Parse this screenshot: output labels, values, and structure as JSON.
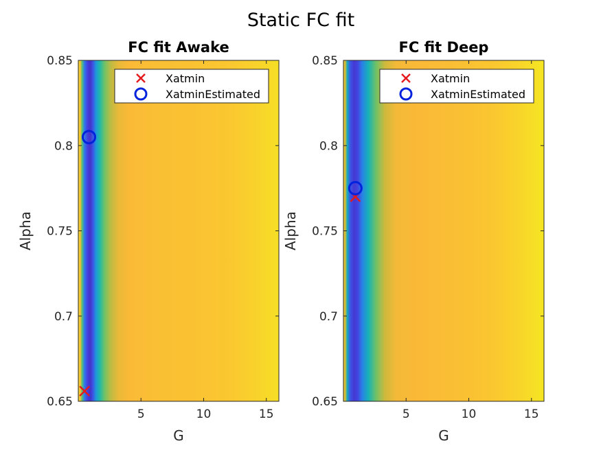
{
  "figure": {
    "suptitle": "Static FC fit"
  },
  "colors": {
    "bg": "#ffffff",
    "axis": "#262626",
    "xatmin_marker": "#e41a1c",
    "estimated_marker": "#0022dd"
  },
  "chart_data": [
    {
      "type": "heatmap",
      "title": "FC fit Awake",
      "xlabel": "G",
      "ylabel": "Alpha",
      "xlim": [
        0,
        16
      ],
      "ylim": [
        0.65,
        0.85
      ],
      "xticks": [
        5,
        10,
        15
      ],
      "yticks": [
        0.65,
        0.7,
        0.75,
        0.8,
        0.85
      ],
      "colormap": "parula",
      "grid": false,
      "legend": {
        "location": "top-right",
        "entries": [
          "Xatmin",
          "XatminEstimated"
        ]
      },
      "field_profile": [
        {
          "g": 0.0,
          "v": 0.9
        },
        {
          "g": 0.15,
          "v": 0.8
        },
        {
          "g": 0.3,
          "v": 0.55
        },
        {
          "g": 0.5,
          "v": 0.22
        },
        {
          "g": 0.75,
          "v": 0.1
        },
        {
          "g": 0.95,
          "v": 0.06
        },
        {
          "g": 1.15,
          "v": 0.14
        },
        {
          "g": 1.4,
          "v": 0.3
        },
        {
          "g": 1.7,
          "v": 0.45
        },
        {
          "g": 2.1,
          "v": 0.58
        },
        {
          "g": 2.6,
          "v": 0.68
        },
        {
          "g": 3.2,
          "v": 0.75
        },
        {
          "g": 4.0,
          "v": 0.78
        },
        {
          "g": 6.0,
          "v": 0.8
        },
        {
          "g": 9.0,
          "v": 0.81
        },
        {
          "g": 12.0,
          "v": 0.83
        },
        {
          "g": 14.0,
          "v": 0.86
        },
        {
          "g": 16.0,
          "v": 0.9
        }
      ],
      "points": [
        {
          "series": "Xatmin",
          "x": 0.5,
          "y": 0.656
        },
        {
          "series": "XatminEstimated",
          "x": 0.85,
          "y": 0.805
        }
      ]
    },
    {
      "type": "heatmap",
      "title": "FC fit Deep",
      "xlabel": "G",
      "ylabel": "Alpha",
      "xlim": [
        0,
        16
      ],
      "ylim": [
        0.65,
        0.85
      ],
      "xticks": [
        5,
        10,
        15
      ],
      "yticks": [
        0.65,
        0.7,
        0.75,
        0.8,
        0.85
      ],
      "colormap": "parula",
      "grid": false,
      "legend": {
        "location": "top-right",
        "entries": [
          "Xatmin",
          "XatminEstimated"
        ]
      },
      "field_profile": [
        {
          "g": 0.0,
          "v": 0.85
        },
        {
          "g": 0.15,
          "v": 0.7
        },
        {
          "g": 0.3,
          "v": 0.4
        },
        {
          "g": 0.55,
          "v": 0.15
        },
        {
          "g": 0.85,
          "v": 0.08
        },
        {
          "g": 1.15,
          "v": 0.12
        },
        {
          "g": 1.5,
          "v": 0.25
        },
        {
          "g": 2.0,
          "v": 0.42
        },
        {
          "g": 2.6,
          "v": 0.58
        },
        {
          "g": 3.3,
          "v": 0.7
        },
        {
          "g": 4.2,
          "v": 0.77
        },
        {
          "g": 6.0,
          "v": 0.78
        },
        {
          "g": 9.0,
          "v": 0.8
        },
        {
          "g": 12.0,
          "v": 0.83
        },
        {
          "g": 14.0,
          "v": 0.87
        },
        {
          "g": 16.0,
          "v": 0.92
        }
      ],
      "points": [
        {
          "series": "Xatmin",
          "x": 0.95,
          "y": 0.77
        },
        {
          "series": "XatminEstimated",
          "x": 0.95,
          "y": 0.775
        }
      ]
    }
  ]
}
